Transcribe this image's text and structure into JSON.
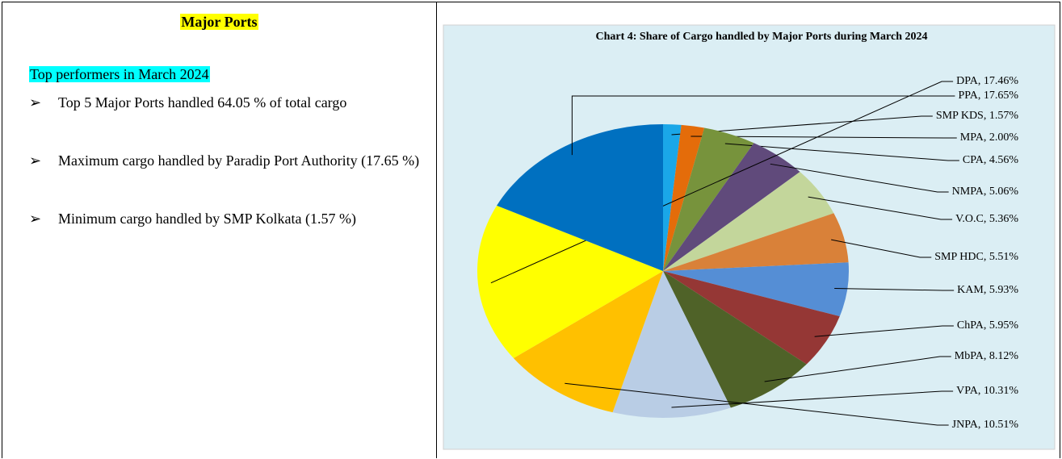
{
  "left": {
    "heading": "Major Ports",
    "subheading": "Top performers in March 2024",
    "bullet_symbol": "➢",
    "bullets": [
      "Top 5 Major Ports handled 64.05 % of total cargo",
      "Maximum cargo handled by Paradip Port Authority (17.65 %)",
      "Minimum cargo handled by SMP Kolkata (1.57 %)"
    ]
  },
  "chart_data": {
    "type": "pie",
    "title": "Chart 4: Share of Cargo handled by Major Ports during March 2024",
    "values": [
      1.57,
      2.0,
      4.56,
      5.06,
      5.36,
      5.51,
      5.93,
      5.95,
      8.12,
      10.31,
      10.51,
      17.46,
      17.65
    ],
    "value_labels": [
      "SMP KDS, 1.57%",
      "MPA, 2.00%",
      "CPA, 4.56%",
      "NMPA, 5.06%",
      "V.O.C, 5.36%",
      "SMP HDC, 5.51%",
      "KAM, 5.93%",
      "ChPA, 5.95%",
      "MbPA, 8.12%",
      "VPA, 10.31%",
      "JNPA, 10.51%",
      "DPA, 17.46%",
      "PPA, 17.65%"
    ],
    "colors": [
      "#1aa7e8",
      "#e46c0a",
      "#77933c",
      "#604a7b",
      "#c3d69b",
      "#d98139",
      "#558ed5",
      "#953735",
      "#4f6228",
      "#b9cde5",
      "#ffc000",
      "#ffff00",
      "#0070c0"
    ]
  }
}
